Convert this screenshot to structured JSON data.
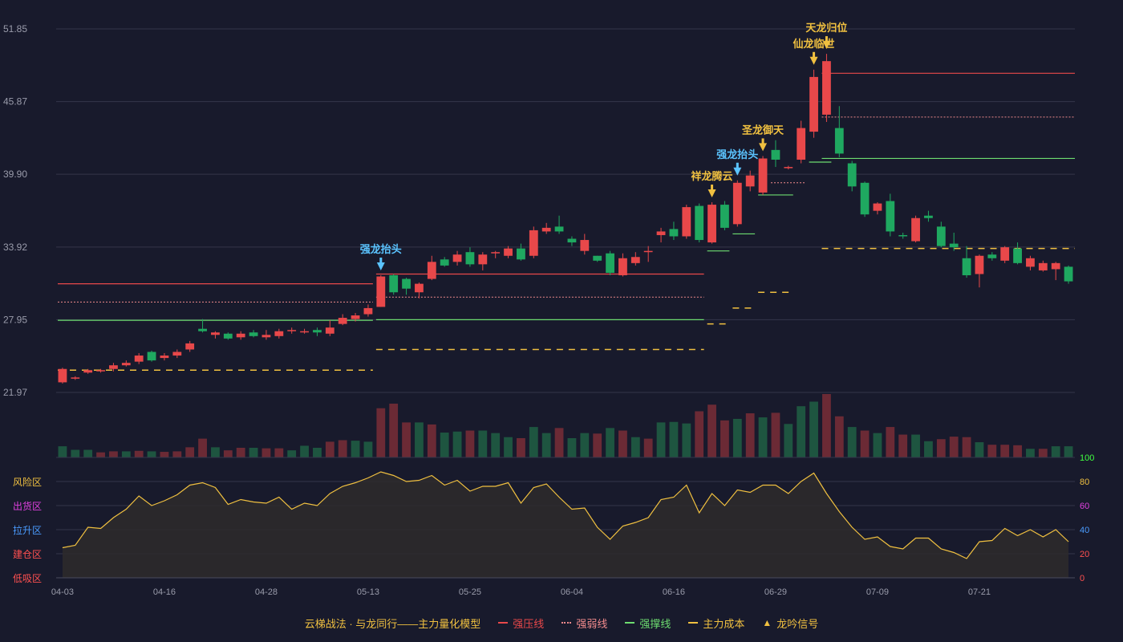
{
  "chart_data": {
    "type": "candlestick",
    "title": "",
    "x_ticks": [
      "04-03",
      "04-16",
      "04-28",
      "05-13",
      "05-25",
      "06-04",
      "06-16",
      "06-29",
      "07-09",
      "07-21"
    ],
    "x_tick_index": [
      0,
      8,
      16,
      24,
      32,
      40,
      48,
      56,
      64,
      72
    ],
    "y_ticks": [
      "51.85",
      "45.87",
      "39.90",
      "33.92",
      "27.95",
      "21.97"
    ],
    "ylim": [
      21.97,
      51.85
    ],
    "candles": [
      [
        22.8,
        23.9,
        22.7,
        24.0
      ],
      [
        23.2,
        23.2,
        23.0,
        23.3
      ],
      [
        23.6,
        23.8,
        23.5,
        23.9
      ],
      [
        23.7,
        23.8,
        23.6,
        23.9
      ],
      [
        23.9,
        24.2,
        23.7,
        24.4
      ],
      [
        24.2,
        24.4,
        24.1,
        24.6
      ],
      [
        24.5,
        25.0,
        24.3,
        25.2
      ],
      [
        25.3,
        24.6,
        24.5,
        25.4
      ],
      [
        24.8,
        25.0,
        24.6,
        25.2
      ],
      [
        25.0,
        25.3,
        24.8,
        25.5
      ],
      [
        25.5,
        26.0,
        25.3,
        26.2
      ],
      [
        27.2,
        27.0,
        26.9,
        28.0
      ],
      [
        26.7,
        26.9,
        26.4,
        27.0
      ],
      [
        26.8,
        26.4,
        26.3,
        26.9
      ],
      [
        26.5,
        26.8,
        26.3,
        27.0
      ],
      [
        26.9,
        26.6,
        26.5,
        27.1
      ],
      [
        26.5,
        26.7,
        26.3,
        27.1
      ],
      [
        26.6,
        27.0,
        26.4,
        27.2
      ],
      [
        27.0,
        27.1,
        26.8,
        27.3
      ],
      [
        27.0,
        27.0,
        26.8,
        27.2
      ],
      [
        27.1,
        26.9,
        26.6,
        27.3
      ],
      [
        26.8,
        27.3,
        26.6,
        27.9
      ],
      [
        27.6,
        28.1,
        27.5,
        28.4
      ],
      [
        28.0,
        28.3,
        27.8,
        28.5
      ],
      [
        28.4,
        28.9,
        28.2,
        29.2
      ],
      [
        29.0,
        31.5,
        29.0,
        31.6
      ],
      [
        31.6,
        30.2,
        30.0,
        31.7
      ],
      [
        31.3,
        30.5,
        30.0,
        31.4
      ],
      [
        30.2,
        30.9,
        29.7,
        31.0
      ],
      [
        31.3,
        32.7,
        31.2,
        33.2
      ],
      [
        32.9,
        32.4,
        32.3,
        33.1
      ],
      [
        32.7,
        33.3,
        32.4,
        33.6
      ],
      [
        33.5,
        32.5,
        32.3,
        33.9
      ],
      [
        32.5,
        33.3,
        32.0,
        33.5
      ],
      [
        33.4,
        33.5,
        33.0,
        33.6
      ],
      [
        33.2,
        33.8,
        33.0,
        34.0
      ],
      [
        33.8,
        32.9,
        32.8,
        34.2
      ],
      [
        33.2,
        35.3,
        33.0,
        35.6
      ],
      [
        35.2,
        35.5,
        35.0,
        35.9
      ],
      [
        35.6,
        35.2,
        35.0,
        36.5
      ],
      [
        34.6,
        34.3,
        34.0,
        34.8
      ],
      [
        33.6,
        34.5,
        33.3,
        35.0
      ],
      [
        33.2,
        32.8,
        32.7,
        33.2
      ],
      [
        33.4,
        31.8,
        31.6,
        33.6
      ],
      [
        31.6,
        33.0,
        31.5,
        33.4
      ],
      [
        32.6,
        33.1,
        32.4,
        33.5
      ],
      [
        33.6,
        33.6,
        32.7,
        34.0
      ],
      [
        34.9,
        35.2,
        34.3,
        35.5
      ],
      [
        35.4,
        34.8,
        34.5,
        36.0
      ],
      [
        34.8,
        37.2,
        34.6,
        37.4
      ],
      [
        37.3,
        34.5,
        34.3,
        37.5
      ],
      [
        34.3,
        37.4,
        34.2,
        37.6
      ],
      [
        37.4,
        35.5,
        35.3,
        37.7
      ],
      [
        35.8,
        39.2,
        35.6,
        39.4
      ],
      [
        38.9,
        39.8,
        38.5,
        40.2
      ],
      [
        38.4,
        41.2,
        38.2,
        41.4
      ],
      [
        41.9,
        41.1,
        40.5,
        42.7
      ],
      [
        40.5,
        40.5,
        40.3,
        40.6
      ],
      [
        41.1,
        43.7,
        40.8,
        44.3
      ],
      [
        43.4,
        47.9,
        42.9,
        48.5
      ],
      [
        44.8,
        49.2,
        44.2,
        49.8
      ],
      [
        43.7,
        41.6,
        41.3,
        45.5
      ],
      [
        40.8,
        38.9,
        38.5,
        41.0
      ],
      [
        39.2,
        36.6,
        36.4,
        39.3
      ],
      [
        36.9,
        37.5,
        36.6,
        37.6
      ],
      [
        37.7,
        35.2,
        34.8,
        38.3
      ],
      [
        34.9,
        34.8,
        34.6,
        35.1
      ],
      [
        34.4,
        36.3,
        34.3,
        36.5
      ],
      [
        36.5,
        36.3,
        36.0,
        36.9
      ],
      [
        35.6,
        34.0,
        33.9,
        36.0
      ],
      [
        34.2,
        33.9,
        33.6,
        35.1
      ],
      [
        33.0,
        31.6,
        31.4,
        34.0
      ],
      [
        31.7,
        33.2,
        30.6,
        33.3
      ],
      [
        33.3,
        33.0,
        32.8,
        33.5
      ],
      [
        32.8,
        33.9,
        32.6,
        34.0
      ],
      [
        33.8,
        32.6,
        32.5,
        34.3
      ],
      [
        32.3,
        33.0,
        32.0,
        33.2
      ],
      [
        32.0,
        32.6,
        31.9,
        32.8
      ],
      [
        32.1,
        32.6,
        31.2,
        32.7
      ],
      [
        32.3,
        31.1,
        30.9,
        32.4
      ]
    ],
    "volume": [
      22,
      15,
      15,
      10,
      12,
      12,
      13,
      12,
      11,
      12,
      20,
      37,
      20,
      14,
      19,
      19,
      18,
      18,
      14,
      23,
      19,
      31,
      34,
      33,
      31,
      97,
      106,
      69,
      69,
      65,
      49,
      51,
      53,
      53,
      48,
      40,
      38,
      60,
      48,
      58,
      38,
      48,
      47,
      58,
      53,
      40,
      37,
      69,
      70,
      67,
      91,
      104,
      73,
      76,
      87,
      79,
      88,
      66,
      101,
      110,
      125,
      81,
      60,
      53,
      48,
      60,
      45,
      45,
      32,
      36,
      41,
      40,
      30,
      25,
      25,
      24,
      17,
      17,
      22,
      22
    ],
    "volume_up": [
      false,
      false,
      false,
      true,
      true,
      false,
      true,
      false,
      true,
      true,
      true,
      true,
      false,
      true,
      true,
      false,
      true,
      true,
      false,
      false,
      false,
      true,
      true,
      false,
      false,
      true,
      true,
      true,
      false,
      true,
      false,
      false,
      true,
      false,
      false,
      false,
      true,
      false,
      false,
      true,
      false,
      false,
      true,
      false,
      true,
      false,
      true,
      false,
      false,
      false,
      true,
      true,
      true,
      false,
      true,
      false,
      true,
      false,
      false,
      false,
      true,
      true,
      false,
      true,
      false,
      true,
      true,
      false,
      false,
      true,
      true,
      true,
      false,
      true,
      true,
      true,
      false,
      true,
      false,
      false
    ],
    "resistance_lines": [
      {
        "from": 0,
        "to": 24,
        "value": 30.9
      },
      {
        "from": 25,
        "to": 50,
        "value": 31.7
      },
      {
        "from": 60,
        "to": 80,
        "value": 48.2
      }
    ],
    "weak_lines": [
      {
        "from": 0,
        "to": 24,
        "value": 29.4
      },
      {
        "from": 25,
        "to": 50,
        "value": 29.8
      },
      {
        "from": 56,
        "to": 58,
        "value": 39.2
      },
      {
        "from": 60,
        "to": 80,
        "value": 44.6
      }
    ],
    "support_lines": [
      {
        "from": 0,
        "to": 24,
        "value": 27.9
      },
      {
        "from": 25,
        "to": 50,
        "value": 27.95
      },
      {
        "from": 51,
        "to": 52,
        "value": 33.6
      },
      {
        "from": 53,
        "to": 54,
        "value": 35.0
      },
      {
        "from": 55,
        "to": 57,
        "value": 38.2
      },
      {
        "from": 59,
        "to": 60,
        "value": 40.9
      },
      {
        "from": 60,
        "to": 80,
        "value": 41.2
      }
    ],
    "cost_lines": [
      {
        "from": 0,
        "to": 24,
        "value": 23.8
      },
      {
        "from": 25,
        "to": 50,
        "value": 25.5
      },
      {
        "from": 51,
        "to": 52,
        "value": 27.6
      },
      {
        "from": 53,
        "to": 54,
        "value": 28.9
      },
      {
        "from": 55,
        "to": 57,
        "value": 30.2
      },
      {
        "from": 60,
        "to": 80,
        "value": 33.8
      }
    ],
    "signals": [
      {
        "index": 25,
        "label": "强龙抬头",
        "color": "#5bc4ff"
      },
      {
        "index": 51,
        "label": "祥龙腾云",
        "color": "#f0c040"
      },
      {
        "index": 53,
        "label": "强龙抬头",
        "color": "#5bc4ff"
      },
      {
        "index": 55,
        "label": "圣龙御天",
        "color": "#f0c040"
      },
      {
        "index": 59,
        "label": "仙龙临世",
        "color": "#f0c040"
      },
      {
        "index": 60,
        "label": "天龙归位",
        "color": "#f0c040"
      }
    ],
    "oscillator": [
      25,
      27,
      42,
      41,
      50,
      57,
      68,
      60,
      64,
      69,
      77,
      79,
      75,
      61,
      65,
      63,
      62,
      67,
      57,
      62,
      60,
      70,
      76,
      79,
      83,
      88,
      85,
      80,
      81,
      85,
      77,
      81,
      72,
      76,
      76,
      79,
      62,
      75,
      78,
      67,
      57,
      58,
      42,
      32,
      43,
      46,
      50,
      65,
      67,
      77,
      54,
      70,
      60,
      73,
      71,
      77,
      77,
      70,
      80,
      87,
      70,
      55,
      42,
      32,
      34,
      26,
      24,
      33,
      33,
      24,
      21,
      16,
      30,
      31,
      41,
      35,
      40,
      34,
      40,
      30
    ],
    "osc_ticks": [
      "100",
      "80",
      "60",
      "40",
      "20",
      "0"
    ],
    "zones": [
      {
        "label": "风险区",
        "color": "#f0c040"
      },
      {
        "label": "出货区",
        "color": "#e040e0"
      },
      {
        "label": "拉升区",
        "color": "#4a9cff"
      },
      {
        "label": "建仓区",
        "color": "#ff5050"
      },
      {
        "label": "低吸区",
        "color": "#ff5050"
      }
    ],
    "osc_tick_colors": [
      "#40ff40",
      "#f0c040",
      "#e040e0",
      "#4a9cff",
      "#ff5050",
      "#ff5050"
    ]
  },
  "legend": {
    "title": "云梯战法 · 与龙同行——主力量化模型",
    "resistance": "强压线",
    "weak": "强弱线",
    "support": "强撑线",
    "cost": "主力成本",
    "signal": "龙吟信号"
  },
  "colors": {
    "up": "#e8484a",
    "down": "#1fa860",
    "vol_up": "#6b2a35",
    "vol_down": "#1e5540",
    "resistance": "#e8484a",
    "weak": "#f08a8c",
    "support": "#6ddc70",
    "cost": "#f0c040",
    "osc_line": "#f0c040",
    "osc_fill": "#2e2c2c"
  }
}
